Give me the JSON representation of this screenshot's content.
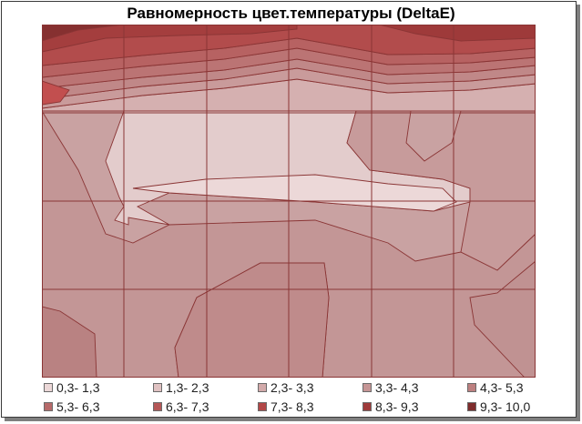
{
  "chart_data": {
    "type": "heatmap",
    "title": "Равномерность цвет.температуры (DeltaE)",
    "subtype": "filled contour",
    "grid": true,
    "grid_cells": {
      "columns": 6,
      "rows": 4
    },
    "legend_position": "bottom",
    "levels": [
      {
        "label": "0,3- 1,3",
        "color": "#ecd8d8"
      },
      {
        "label": "1,3- 2,3",
        "color": "#e0c2c2"
      },
      {
        "label": "2,3- 3,3",
        "color": "#d2aaaa"
      },
      {
        "label": "3,3- 4,3",
        "color": "#c69696"
      },
      {
        "label": "4,3- 5,3",
        "color": "#bd8080"
      },
      {
        "label": "5,3- 6,3",
        "color": "#b76a6a"
      },
      {
        "label": "6,3- 7,3",
        "color": "#b55757"
      },
      {
        "label": "7,3- 8,3",
        "color": "#b24747"
      },
      {
        "label": "8,3- 9,3",
        "color": "#9e3a3a"
      },
      {
        "label": "9,3- 10,0",
        "color": "#7e2c2c"
      }
    ],
    "line_color": "#8a3535"
  }
}
